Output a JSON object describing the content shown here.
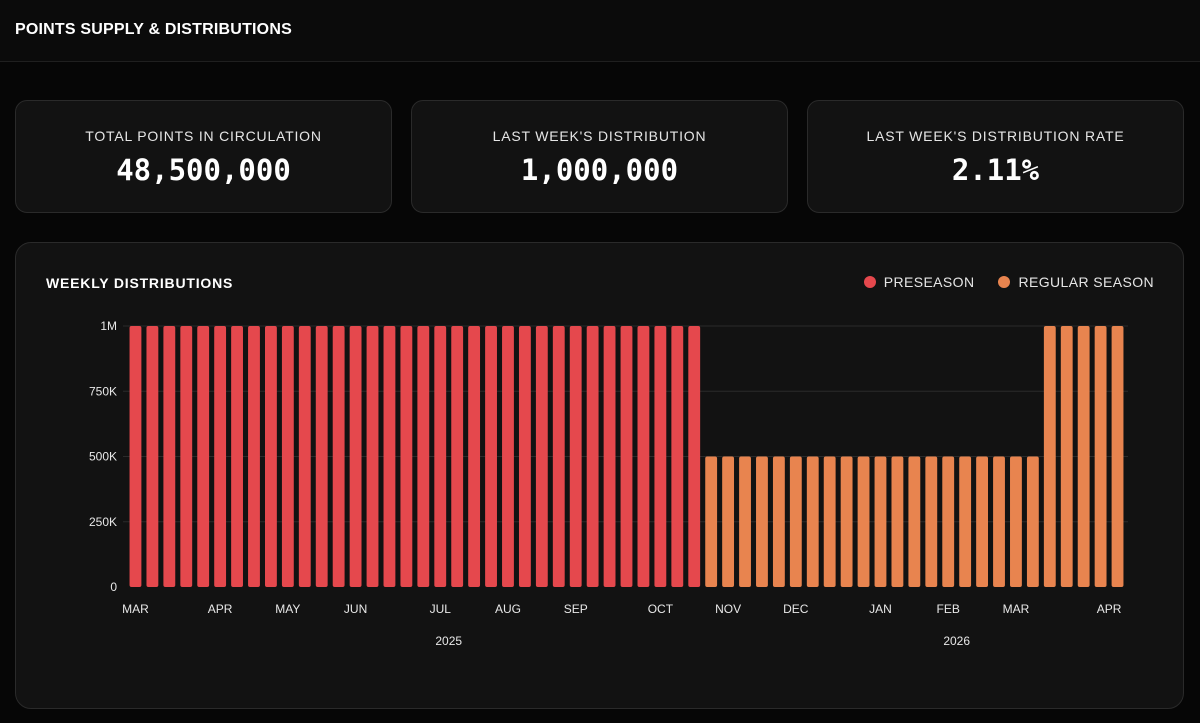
{
  "header": {
    "title": "POINTS SUPPLY & DISTRIBUTIONS"
  },
  "stats": [
    {
      "label": "TOTAL POINTS IN CIRCULATION",
      "value": "48,500,000"
    },
    {
      "label": "LAST WEEK'S DISTRIBUTION",
      "value": "1,000,000"
    },
    {
      "label": "LAST WEEK'S DISTRIBUTION RATE",
      "value": "2.11%"
    }
  ],
  "chart": {
    "title": "WEEKLY DISTRIBUTIONS",
    "legend": [
      {
        "label": "PRESEASON",
        "color": "#e5484d"
      },
      {
        "label": "REGULAR SEASON",
        "color": "#e8844f"
      }
    ]
  },
  "chart_data": {
    "type": "bar",
    "title": "WEEKLY DISTRIBUTIONS",
    "xlabel": "",
    "ylabel": "",
    "ylim": [
      0,
      1000000
    ],
    "y_ticks": [
      {
        "value": 0,
        "label": "0"
      },
      {
        "value": 250000,
        "label": "250K"
      },
      {
        "value": 500000,
        "label": "500K"
      },
      {
        "value": 750000,
        "label": "750K"
      },
      {
        "value": 1000000,
        "label": "1M"
      }
    ],
    "grid": true,
    "legend_position": "top-right",
    "series": [
      {
        "name": "PRESEASON",
        "color": "#e5484d",
        "values": [
          1000000,
          1000000,
          1000000,
          1000000,
          1000000,
          1000000,
          1000000,
          1000000,
          1000000,
          1000000,
          1000000,
          1000000,
          1000000,
          1000000,
          1000000,
          1000000,
          1000000,
          1000000,
          1000000,
          1000000,
          1000000,
          1000000,
          1000000,
          1000000,
          1000000,
          1000000,
          1000000,
          1000000,
          1000000,
          1000000,
          1000000,
          1000000,
          1000000,
          1000000
        ]
      },
      {
        "name": "REGULAR SEASON",
        "color": "#e8844f",
        "values": [
          500000,
          500000,
          500000,
          500000,
          500000,
          500000,
          500000,
          500000,
          500000,
          500000,
          500000,
          500000,
          500000,
          500000,
          500000,
          500000,
          500000,
          500000,
          500000,
          500000,
          1000000,
          1000000,
          1000000,
          1000000,
          1000000
        ]
      }
    ],
    "x_month_ticks": [
      {
        "label": "MAR",
        "week": 0
      },
      {
        "label": "APR",
        "week": 5
      },
      {
        "label": "MAY",
        "week": 9
      },
      {
        "label": "JUN",
        "week": 13
      },
      {
        "label": "JUL",
        "week": 18
      },
      {
        "label": "AUG",
        "week": 22
      },
      {
        "label": "SEP",
        "week": 26
      },
      {
        "label": "OCT",
        "week": 31
      },
      {
        "label": "NOV",
        "week": 35
      },
      {
        "label": "DEC",
        "week": 39
      },
      {
        "label": "JAN",
        "week": 44
      },
      {
        "label": "FEB",
        "week": 48
      },
      {
        "label": "MAR",
        "week": 52
      },
      {
        "label": "APR",
        "week": 57.5
      }
    ],
    "x_year_labels": [
      {
        "label": "2025",
        "week": 18.5
      },
      {
        "label": "2026",
        "week": 48.5
      }
    ]
  }
}
